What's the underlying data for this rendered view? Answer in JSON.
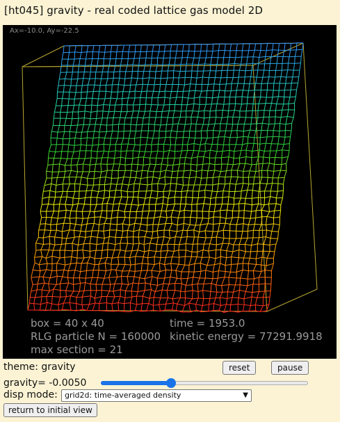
{
  "title": "[ht045] gravity - real coded lattice gas model 2D",
  "viewport": {
    "coord": "Ax=-10.0, Ay=-22.5",
    "stats": {
      "box": "box = 40 x 40",
      "time": "time = 1953.0",
      "particles": "RLG particle N = 160000",
      "energy": "kinetic energy = 77291.9918",
      "max_section": "max section = 21"
    },
    "colors": {
      "background": "#000000",
      "box_frame": "#b8a830",
      "gradient": [
        "#ff2020",
        "#ffa000",
        "#f0f000",
        "#30d030",
        "#20d0b0",
        "#3090ff"
      ]
    }
  },
  "controls": {
    "theme_label": "theme: gravity",
    "reset_label": "reset",
    "pause_label": "pause",
    "gravity_label": "gravity= -0.0050",
    "gravity_fraction": 0.34,
    "disp_label": "disp mode:",
    "disp_selected": "grid2d: time-averaged density",
    "return_label": "return to initial view"
  }
}
